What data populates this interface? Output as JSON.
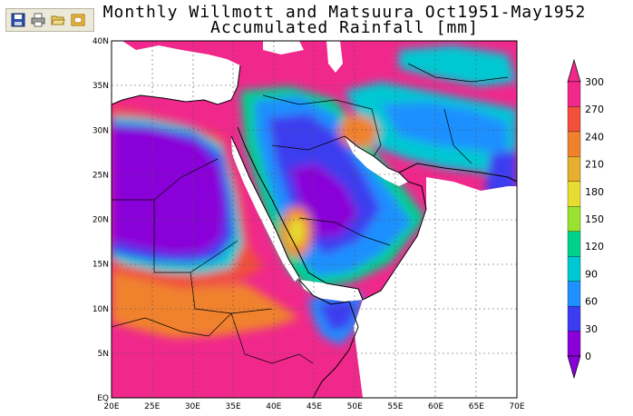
{
  "toolbar": {
    "buttons": [
      {
        "name": "save-button",
        "icon": "floppy-disk-icon"
      },
      {
        "name": "print-button",
        "icon": "printer-icon"
      },
      {
        "name": "open-button",
        "icon": "folder-open-icon"
      },
      {
        "name": "export-button",
        "icon": "export-image-icon"
      }
    ]
  },
  "header": {
    "title_line1": "Monthly Willmott and Matsuura Oct1951-May1952",
    "title_line2": "Accumulated Rainfall [mm]"
  },
  "map": {
    "lon_labels": [
      "20E",
      "25E",
      "30E",
      "35E",
      "40E",
      "45E",
      "50E",
      "55E",
      "60E",
      "65E",
      "70E"
    ],
    "lat_labels": [
      "EQ",
      "5N",
      "10N",
      "15N",
      "20N",
      "25N",
      "30N",
      "35N",
      "40N"
    ],
    "colorbar": {
      "labels": [
        "0",
        "30",
        "60",
        "90",
        "120",
        "150",
        "180",
        "210",
        "240",
        "270",
        "300"
      ],
      "colors": [
        "#8a00d8",
        "#3c3cf0",
        "#1e90ff",
        "#00c8d2",
        "#00d28c",
        "#9be132",
        "#e6dc32",
        "#e6af2d",
        "#f0822d",
        "#f0503c",
        "#f0288c"
      ]
    }
  }
}
